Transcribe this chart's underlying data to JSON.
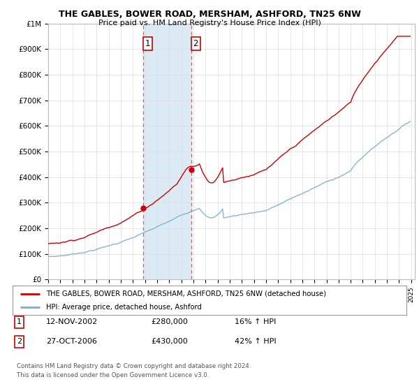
{
  "title": "THE GABLES, BOWER ROAD, MERSHAM, ASHFORD, TN25 6NW",
  "subtitle": "Price paid vs. HM Land Registry's House Price Index (HPI)",
  "ylim": [
    0,
    1000000
  ],
  "yticks": [
    0,
    100000,
    200000,
    300000,
    400000,
    500000,
    600000,
    700000,
    800000,
    900000,
    1000000
  ],
  "ytick_labels": [
    "£0",
    "£100K",
    "£200K",
    "£300K",
    "£400K",
    "£500K",
    "£600K",
    "£700K",
    "£800K",
    "£900K",
    "£1M"
  ],
  "sale1_year": 2002.87,
  "sale1_price": 280000,
  "sale2_year": 2006.83,
  "sale2_price": 430000,
  "property_color": "#cc0000",
  "hpi_color": "#7aadcc",
  "shade_color": "#dceaf5",
  "dashed_line_color": "#cc6666",
  "legend_property_label": "THE GABLES, BOWER ROAD, MERSHAM, ASHFORD, TN25 6NW (detached house)",
  "legend_hpi_label": "HPI: Average price, detached house, Ashford",
  "footnote1": "Contains HM Land Registry data © Crown copyright and database right 2024.",
  "footnote2": "This data is licensed under the Open Government Licence v3.0.",
  "background_color": "#ffffff"
}
